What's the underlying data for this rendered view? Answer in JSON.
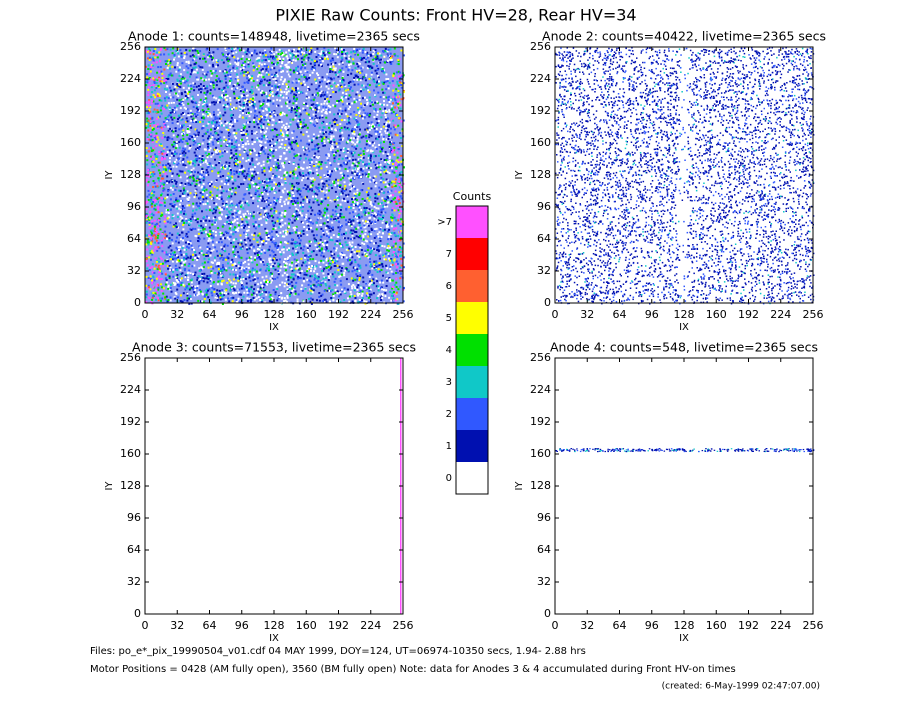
{
  "title": "PIXIE Raw Counts:  Front HV=28, Rear HV=34",
  "chart_data": [
    {
      "type": "heatmap",
      "title": "Anode 1: counts=148948, livetime=2365 secs",
      "xlabel": "IX",
      "ylabel": "IY",
      "xlim": [
        0,
        256
      ],
      "ylim": [
        0,
        256
      ],
      "xticks": [
        0,
        32,
        64,
        96,
        128,
        160,
        192,
        224,
        256
      ],
      "yticks": [
        0,
        32,
        64,
        96,
        128,
        160,
        192,
        224,
        256
      ]
    },
    {
      "type": "heatmap",
      "title": "Anode 2: counts=40422, livetime=2365 secs",
      "xlabel": "IX",
      "ylabel": "IY",
      "xlim": [
        0,
        256
      ],
      "ylim": [
        0,
        256
      ],
      "xticks": [
        0,
        32,
        64,
        96,
        128,
        160,
        192,
        224,
        256
      ],
      "yticks": [
        0,
        32,
        64,
        96,
        128,
        160,
        192,
        224,
        256
      ]
    },
    {
      "type": "heatmap",
      "title": "Anode 3: counts=71553, livetime=2365 secs",
      "xlabel": "IX",
      "ylabel": "IY",
      "xlim": [
        0,
        256
      ],
      "ylim": [
        0,
        256
      ],
      "xticks": [
        0,
        32,
        64,
        96,
        128,
        160,
        192,
        224,
        256
      ],
      "yticks": [
        0,
        32,
        64,
        96,
        128,
        160,
        192,
        224,
        256
      ]
    },
    {
      "type": "heatmap",
      "title": "Anode 4: counts=548, livetime=2365 secs",
      "xlabel": "IX",
      "ylabel": "IY",
      "xlim": [
        0,
        256
      ],
      "ylim": [
        0,
        256
      ],
      "xticks": [
        0,
        32,
        64,
        96,
        128,
        160,
        192,
        224,
        256
      ],
      "yticks": [
        0,
        32,
        64,
        96,
        128,
        160,
        192,
        224,
        256
      ]
    }
  ],
  "colorbar": {
    "title": "Counts",
    "labels": [
      "0",
      "1",
      "2",
      "3",
      "4",
      "5",
      "6",
      "7",
      ">7"
    ],
    "colors": [
      "#ffffff",
      "#0010b0",
      "#3058ff",
      "#10c8c8",
      "#00e000",
      "#ffff00",
      "#ff6030",
      "#ff0000",
      "#ff50ff"
    ]
  },
  "footer": {
    "files": "Files: po_e*_pix_19990504_v01.cdf    04 MAY 1999, DOY=124, UT=06974-10350 secs,  1.94- 2.88 hrs",
    "motor": "Motor Positions = 0428 (AM fully open), 3560 (BM fully open)    Note: data for Anodes 3 & 4 accumulated during Front HV-on times",
    "created": "(created:  6-May-1999 02:47:07.00)"
  }
}
